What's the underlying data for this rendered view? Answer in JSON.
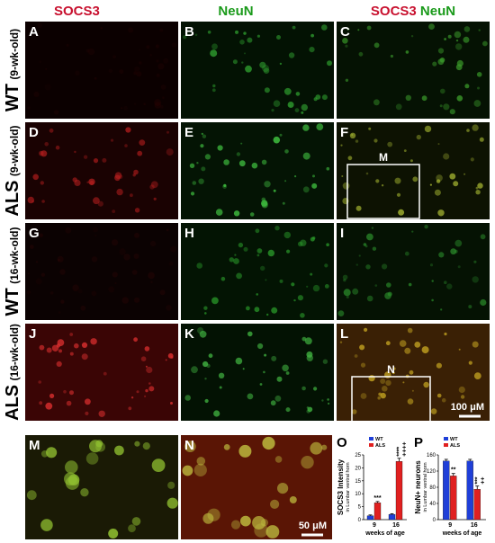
{
  "column_headers": [
    "SOCS3",
    "NeuN"
  ],
  "merged_header": [
    "SOCS3",
    "NeuN"
  ],
  "rows": [
    {
      "label": "WT",
      "age": "(9-wk-old)"
    },
    {
      "label": "ALS",
      "age": "(9-wk-old)"
    },
    {
      "label": "WT",
      "age": "(16-wk-old)"
    },
    {
      "label": "ALS",
      "age": "(16-wk-old)"
    }
  ],
  "panels": [
    "A",
    "B",
    "C",
    "D",
    "E",
    "F",
    "G",
    "H",
    "I",
    "J",
    "K",
    "L",
    "M",
    "N"
  ],
  "inset_labels": [
    "M",
    "N"
  ],
  "scale_bars": [
    "100 μM",
    "50 μM"
  ],
  "chart_data": [
    {
      "type": "bar",
      "label": "O",
      "ylabel": "SOCS3 Intensity",
      "ylabel_sub": "in Lumbar ventral horn",
      "xlabel": "weeks of age",
      "categories": [
        "9",
        "16"
      ],
      "series": [
        {
          "name": "WT",
          "color": "#1f3fd8",
          "values": [
            1.5,
            2
          ],
          "errors": [
            0.3,
            0.3
          ]
        },
        {
          "name": "ALS",
          "color": "#e02020",
          "values": [
            6.5,
            22.5
          ],
          "errors": [
            0.5,
            1.2
          ]
        }
      ],
      "significance": [
        "***",
        "****",
        "++++"
      ],
      "ylim": [
        0,
        25
      ],
      "yticks": [
        0,
        5,
        10,
        15,
        20,
        25
      ]
    },
    {
      "type": "bar",
      "label": "P",
      "ylabel": "NeuN+ neurons",
      "ylabel_sub": "in Lumbar ventral horn",
      "xlabel": "weeks of age",
      "categories": [
        "9",
        "16"
      ],
      "series": [
        {
          "name": "WT",
          "color": "#1f3fd8",
          "values": [
            145,
            145
          ],
          "errors": [
            4,
            4
          ]
        },
        {
          "name": "ALS",
          "color": "#e02020",
          "values": [
            108,
            75
          ],
          "errors": [
            6,
            8
          ]
        }
      ],
      "significance": [
        "**",
        "***",
        "++"
      ],
      "ylim": [
        0,
        160
      ],
      "yticks": [
        0,
        40,
        80,
        120,
        160
      ]
    }
  ]
}
